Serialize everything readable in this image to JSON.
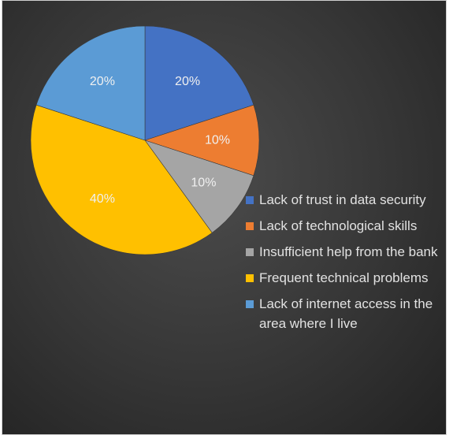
{
  "chart_data": {
    "type": "pie",
    "title": "",
    "slices": [
      {
        "label": "Lack of trust in data security",
        "value": 20,
        "value_label": "20%",
        "color": "#4472c4"
      },
      {
        "label": "Lack of technological skills",
        "value": 10,
        "value_label": "10%",
        "color": "#ed7d31"
      },
      {
        "label": "Insufficient help from the bank",
        "value": 10,
        "value_label": "10%",
        "color": "#a5a5a5"
      },
      {
        "label": "Frequent technical problems",
        "value": 40,
        "value_label": "40%",
        "color": "#ffc000"
      },
      {
        "label": "Lack of internet access in the area where I live",
        "value": 20,
        "value_label": "20%",
        "color": "#5b9bd5"
      }
    ],
    "legend_position": "right",
    "start_angle": "12 o'clock",
    "direction": "clockwise"
  }
}
